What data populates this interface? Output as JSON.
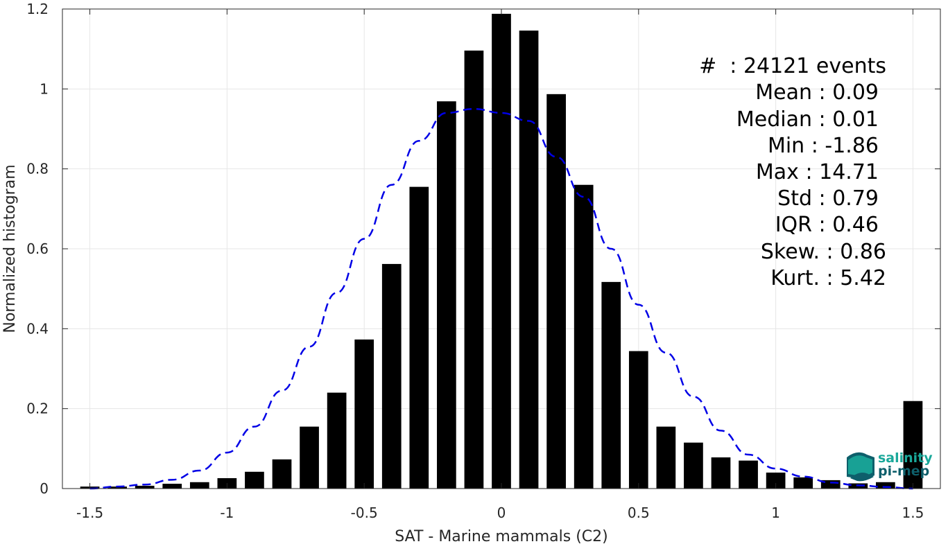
{
  "chart_data": {
    "type": "bar",
    "xlabel": "SAT - Marine mammals (C2)",
    "ylabel": "Normalized histogram",
    "xlim": [
      -1.6,
      1.6
    ],
    "ylim": [
      0,
      1.2
    ],
    "grid": true,
    "xticks": [
      -1.5,
      -1,
      -0.5,
      0,
      0.5,
      1,
      1.5
    ],
    "xtick_labels": [
      "-1.5",
      "-1",
      "-0.5",
      "0",
      "0.5",
      "1",
      "1.5"
    ],
    "yticks": [
      0,
      0.2,
      0.4,
      0.6,
      0.8,
      1,
      1.2
    ],
    "ytick_labels": [
      "0",
      "0.2",
      "0.4",
      "0.6",
      "0.8",
      "1",
      "1.2"
    ],
    "bar_color": "#000000",
    "bars": {
      "x": [
        -1.5,
        -1.4,
        -1.3,
        -1.2,
        -1.1,
        -1.0,
        -0.9,
        -0.8,
        -0.7,
        -0.6,
        -0.5,
        -0.4,
        -0.3,
        -0.2,
        -0.1,
        0.0,
        0.1,
        0.2,
        0.3,
        0.4,
        0.5,
        0.6,
        0.7,
        0.8,
        0.9,
        1.0,
        1.1,
        1.2,
        1.3,
        1.4,
        1.5
      ],
      "values": [
        0.005,
        0.005,
        0.007,
        0.012,
        0.016,
        0.026,
        0.042,
        0.073,
        0.155,
        0.24,
        0.373,
        0.562,
        0.755,
        0.969,
        1.096,
        1.188,
        1.146,
        0.987,
        0.76,
        0.517,
        0.344,
        0.155,
        0.115,
        0.078,
        0.07,
        0.04,
        0.028,
        0.021,
        0.013,
        0.016,
        0.219
      ]
    },
    "fit_curve": {
      "style": "dashed",
      "color": "#0000e6",
      "x": [
        -1.5,
        -1.4,
        -1.3,
        -1.2,
        -1.1,
        -1.0,
        -0.9,
        -0.8,
        -0.7,
        -0.6,
        -0.5,
        -0.4,
        -0.3,
        -0.2,
        -0.1,
        0.0,
        0.1,
        0.2,
        0.3,
        0.4,
        0.5,
        0.6,
        0.7,
        0.8,
        0.9,
        1.0,
        1.1,
        1.2,
        1.3,
        1.4,
        1.5
      ],
      "y": [
        0.0,
        0.005,
        0.01,
        0.022,
        0.045,
        0.09,
        0.155,
        0.245,
        0.355,
        0.49,
        0.625,
        0.76,
        0.87,
        0.94,
        0.95,
        0.94,
        0.92,
        0.83,
        0.73,
        0.6,
        0.46,
        0.34,
        0.23,
        0.145,
        0.085,
        0.05,
        0.03,
        0.015,
        0.008,
        0.004,
        0.0
      ]
    },
    "annotations": {
      "count": "#  : 24121 events",
      "mean": "Mean : 0.09",
      "median": "Median : 0.01",
      "min": "Min : -1.86",
      "max": "Max : 14.71",
      "std": "Std : 0.79",
      "iqr": "IQR : 0.46",
      "skew": "Skew. : 0.86",
      "kurt": "Kurt. : 5.42"
    }
  },
  "logo": {
    "line1": "salinity",
    "line2": "pi-mep",
    "color_teal": "#1aa89a",
    "color_dark": "#0e5f6b"
  }
}
